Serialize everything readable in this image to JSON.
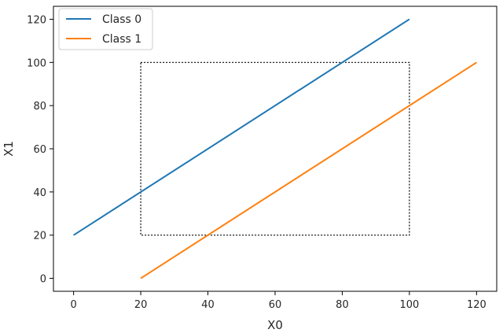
{
  "chart_data": {
    "type": "line",
    "xlabel": "X0",
    "ylabel": "X1",
    "xlim": [
      -6,
      126
    ],
    "ylim": [
      -6,
      126
    ],
    "x_ticks": [
      0,
      20,
      40,
      60,
      80,
      100,
      120
    ],
    "y_ticks": [
      0,
      20,
      40,
      60,
      80,
      100,
      120
    ],
    "grid": false,
    "legend_position": "top-left",
    "series": [
      {
        "name": "Class 0",
        "color": "#1f77b4",
        "x": [
          0,
          100
        ],
        "y": [
          20,
          120
        ]
      },
      {
        "name": "Class 1",
        "color": "#ff7f0e",
        "x": [
          20,
          120
        ],
        "y": [
          0,
          100
        ]
      }
    ],
    "annotations": [
      {
        "type": "dotted-rectangle",
        "color": "#000000",
        "x": [
          20,
          100
        ],
        "y": [
          20,
          100
        ]
      }
    ]
  }
}
